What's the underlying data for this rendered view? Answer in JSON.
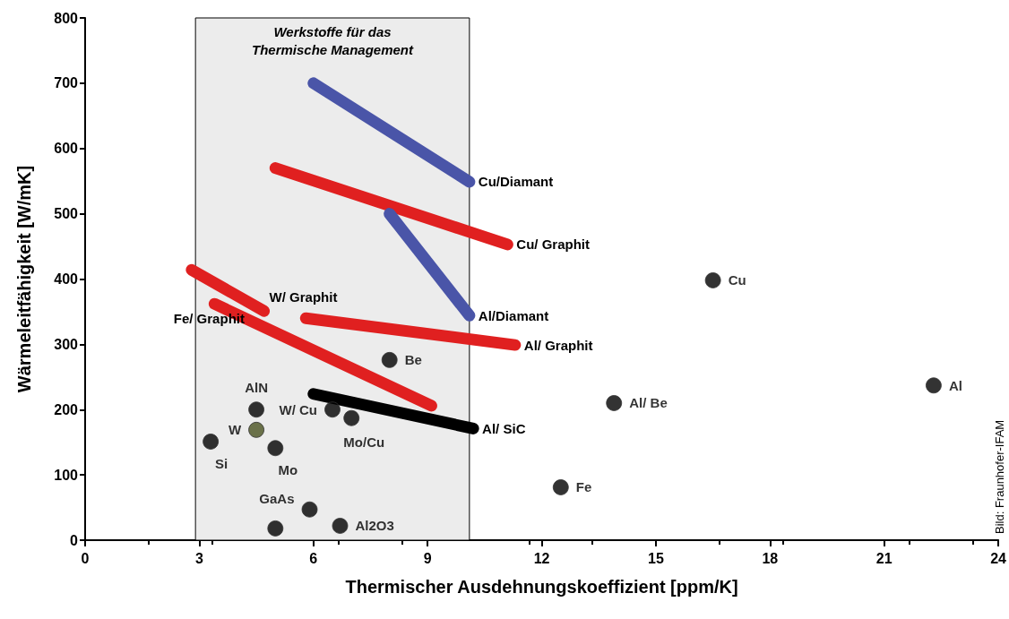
{
  "chart_data": {
    "type": "scatter",
    "xlabel": "Thermischer Ausdehnungskoeffizient [ppm/K]",
    "ylabel": "Wärmeleitfähigkeit [W/mK]",
    "xlim": [
      0,
      24
    ],
    "xticks": [
      0,
      3,
      6,
      9,
      12,
      15,
      18,
      21,
      24
    ],
    "ylim": [
      0,
      800
    ],
    "yticks": [
      0,
      100,
      200,
      300,
      400,
      500,
      600,
      700,
      800
    ],
    "grid": false,
    "marker": "circle",
    "bands": [
      {
        "axis": "x",
        "from": 2.9,
        "to": 10.1,
        "label": "Werkstoffe für das\nThermische Management",
        "color": "#ececec"
      }
    ],
    "annotations": [
      "Bild: Fraunhofer-IFAM"
    ],
    "series": [
      {
        "name": "Cu/Diamant",
        "type": "line",
        "marker": "none",
        "color": "#4a55a8",
        "x": [
          6.0,
          10.1
        ],
        "values": [
          700,
          549
        ]
      },
      {
        "name": "Cu/ Graphit",
        "type": "line",
        "marker": "none",
        "color": "#e02020",
        "x": [
          5.0,
          11.1
        ],
        "values": [
          570,
          453
        ]
      },
      {
        "name": "Al/Diamant",
        "type": "line",
        "marker": "none",
        "color": "#4a55a8",
        "x": [
          8.0,
          10.1
        ],
        "values": [
          500,
          344
        ]
      },
      {
        "name": "W/ Graphit",
        "type": "line",
        "marker": "none",
        "color": "#e02020",
        "x": [
          2.8,
          4.7
        ],
        "values": [
          414,
          351
        ]
      },
      {
        "name": "Al/ Graphit",
        "type": "line",
        "marker": "none",
        "color": "#e02020",
        "x": [
          5.8,
          11.3
        ],
        "values": [
          340,
          299
        ]
      },
      {
        "name": "Fe/ Graphit",
        "type": "line",
        "marker": "none",
        "color": "#e02020",
        "x": [
          3.4,
          9.1
        ],
        "values": [
          362,
          206
        ]
      },
      {
        "name": "Al/ SiC",
        "type": "line",
        "marker": "none",
        "color": "#000000",
        "x": [
          6.0,
          10.2
        ],
        "values": [
          224,
          171
        ]
      },
      {
        "name": "Cu",
        "color": "#000000",
        "x": [
          16.5
        ],
        "values": [
          398
        ]
      },
      {
        "name": "Al",
        "color": "#000000",
        "x": [
          22.3
        ],
        "values": [
          237
        ]
      },
      {
        "name": "Al/ Be",
        "color": "#000000",
        "x": [
          13.9
        ],
        "values": [
          210
        ]
      },
      {
        "name": "Fe",
        "color": "#000000",
        "x": [
          12.5
        ],
        "values": [
          81
        ]
      },
      {
        "name": "Be",
        "color": "#000000",
        "x": [
          8.0
        ],
        "values": [
          276
        ]
      },
      {
        "name": "AlN",
        "color": "#000000",
        "x": [
          4.5
        ],
        "values": [
          200
        ]
      },
      {
        "name": "W",
        "color": "#4a5220",
        "x": [
          4.5
        ],
        "values": [
          169
        ]
      },
      {
        "name": "W/ Cu",
        "color": "#000000",
        "x": [
          6.5
        ],
        "values": [
          200
        ]
      },
      {
        "name": "Mo/Cu",
        "color": "#000000",
        "x": [
          7.0
        ],
        "values": [
          187
        ]
      },
      {
        "name": "Si",
        "color": "#000000",
        "x": [
          3.3
        ],
        "values": [
          151
        ]
      },
      {
        "name": "Mo",
        "color": "#000000",
        "x": [
          5.0
        ],
        "values": [
          141
        ]
      },
      {
        "name": "GaAs",
        "color": "#000000",
        "x": [
          5.9
        ],
        "values": [
          47
        ]
      },
      {
        "color": "#000000",
        "x": [
          5.0
        ],
        "values": [
          18
        ]
      },
      {
        "name": "Al2O3",
        "color": "#000000",
        "x": [
          6.7
        ],
        "values": [
          22
        ]
      }
    ]
  }
}
